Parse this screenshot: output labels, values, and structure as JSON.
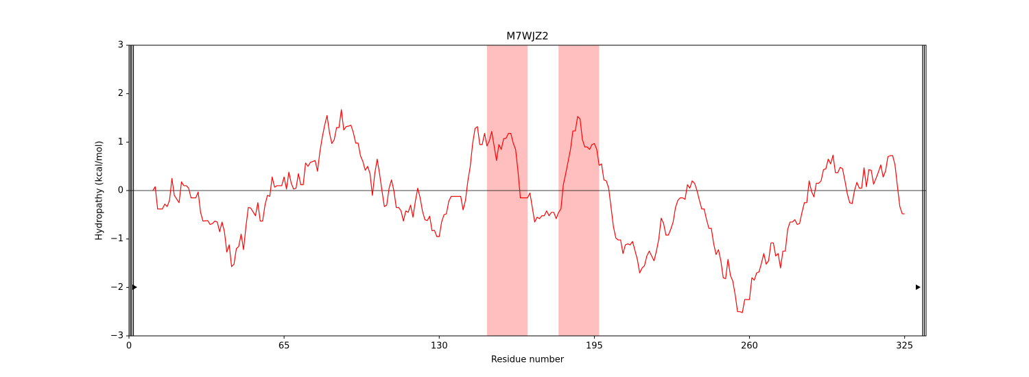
{
  "chart_data": {
    "type": "line",
    "title": "M7WJZ2",
    "x_label": "Residue number",
    "y_label": "Hydropathy (kcal/mol)",
    "color": "#ff0000",
    "x": [
      10,
      11,
      12,
      14,
      15,
      16,
      17,
      18,
      19,
      21,
      22,
      23,
      24,
      25,
      26,
      28,
      29,
      30,
      31,
      33,
      34,
      35,
      36,
      37,
      38,
      39,
      40,
      41,
      42,
      43,
      44,
      45,
      46,
      47,
      48,
      49,
      50,
      51,
      53,
      54,
      55,
      56,
      57,
      58,
      59,
      60,
      61,
      62,
      64,
      65,
      66,
      67,
      68,
      69,
      70,
      71,
      72,
      73,
      74,
      75,
      76,
      77,
      78,
      79,
      80,
      81,
      82,
      83,
      84,
      85,
      86,
      87,
      88,
      89,
      90,
      91,
      92,
      93,
      94,
      95,
      96,
      97,
      98,
      99,
      100,
      101,
      102,
      103,
      104,
      105,
      106,
      107,
      108,
      109,
      110,
      111,
      112,
      113,
      114,
      115,
      116,
      117,
      118,
      119,
      120,
      121,
      122,
      123,
      124,
      125,
      126,
      127,
      128,
      129,
      130,
      131,
      132,
      133,
      134,
      135,
      136,
      137,
      139,
      140,
      141,
      142,
      143,
      144,
      145,
      146,
      147,
      148,
      149,
      150,
      151,
      152,
      153,
      154,
      155,
      156,
      157,
      158,
      159,
      160,
      161,
      162,
      163,
      164,
      166,
      167,
      168,
      170,
      171,
      172,
      173,
      174,
      175,
      176,
      177,
      178,
      179,
      180,
      181,
      182,
      183,
      184,
      185,
      186,
      187,
      188,
      189,
      190,
      191,
      192,
      193,
      194,
      195,
      196,
      197,
      198,
      199,
      200,
      201,
      202,
      203,
      204,
      205,
      206,
      207,
      208,
      209,
      210,
      211,
      213,
      214,
      215,
      216,
      217,
      218,
      219,
      220,
      221,
      222,
      223,
      224,
      225,
      226,
      227,
      228,
      229,
      230,
      231,
      232,
      233,
      234,
      235,
      236,
      237,
      238,
      239,
      240,
      241,
      242,
      243,
      244,
      245,
      246,
      247,
      248,
      249,
      250,
      251,
      252,
      253,
      254,
      255,
      256,
      257,
      258,
      259,
      260,
      261,
      262,
      263,
      264,
      265,
      266,
      267,
      268,
      269,
      270,
      271,
      272,
      273,
      274,
      275,
      276,
      277,
      278,
      279,
      280,
      281,
      282,
      283,
      284,
      285,
      286,
      287,
      288,
      289,
      290,
      291,
      292,
      293,
      294,
      295,
      296,
      297,
      298,
      299,
      300,
      301,
      302,
      303,
      304,
      305,
      306,
      307,
      308,
      309,
      310,
      311,
      312,
      313,
      314,
      315,
      316,
      317,
      318,
      319,
      320,
      321,
      322,
      323,
      324,
      325
    ],
    "values": [
      0.0,
      0.08,
      -0.38,
      -0.38,
      -0.28,
      -0.33,
      -0.2,
      0.25,
      -0.1,
      -0.25,
      0.18,
      0.1,
      0.1,
      0.05,
      -0.15,
      -0.15,
      -0.03,
      -0.45,
      -0.63,
      -0.62,
      -0.7,
      -0.68,
      -0.63,
      -0.65,
      -0.85,
      -0.65,
      -0.85,
      -1.27,
      -1.12,
      -1.57,
      -1.52,
      -1.2,
      -1.15,
      -0.9,
      -1.22,
      -0.75,
      -0.35,
      -0.36,
      -0.52,
      -0.25,
      -0.63,
      -0.63,
      -0.3,
      -0.1,
      -0.12,
      0.28,
      0.07,
      0.1,
      0.1,
      0.28,
      0.03,
      0.38,
      0.15,
      0.03,
      0.05,
      0.35,
      0.12,
      0.12,
      0.57,
      0.5,
      0.58,
      0.6,
      0.62,
      0.4,
      0.8,
      1.1,
      1.35,
      1.55,
      1.2,
      0.97,
      1.05,
      1.3,
      1.3,
      1.67,
      1.25,
      1.32,
      1.33,
      1.35,
      1.2,
      0.98,
      0.98,
      0.72,
      0.6,
      0.42,
      0.5,
      0.35,
      -0.1,
      0.35,
      0.65,
      0.35,
      0.0,
      -0.33,
      -0.3,
      0.05,
      0.22,
      0.0,
      -0.35,
      -0.35,
      -0.42,
      -0.63,
      -0.42,
      -0.45,
      -0.3,
      -0.55,
      -0.22,
      0.05,
      -0.15,
      -0.43,
      -0.6,
      -0.62,
      -0.53,
      -0.83,
      -0.82,
      -0.95,
      -0.95,
      -0.65,
      -0.5,
      -0.48,
      -0.22,
      -0.12,
      -0.12,
      -0.12,
      -0.12,
      -0.4,
      -0.2,
      0.2,
      0.5,
      0.97,
      1.28,
      1.32,
      0.95,
      0.95,
      1.18,
      0.92,
      1.03,
      1.22,
      0.92,
      0.62,
      0.95,
      0.85,
      1.07,
      1.08,
      1.18,
      1.18,
      0.98,
      0.85,
      0.4,
      -0.15,
      -0.15,
      -0.15,
      -0.05,
      -0.65,
      -0.55,
      -0.58,
      -0.52,
      -0.52,
      -0.42,
      -0.52,
      -0.45,
      -0.45,
      -0.58,
      -0.45,
      -0.38,
      0.12,
      0.35,
      0.6,
      0.85,
      1.23,
      1.23,
      1.53,
      1.48,
      1.05,
      0.9,
      0.9,
      0.85,
      0.95,
      0.97,
      0.85,
      0.52,
      0.55,
      0.22,
      0.2,
      0.05,
      -0.35,
      -0.75,
      -0.98,
      -1.02,
      -1.02,
      -1.3,
      -1.12,
      -1.1,
      -1.12,
      -1.05,
      -1.42,
      -1.7,
      -1.6,
      -1.55,
      -1.35,
      -1.25,
      -1.35,
      -1.45,
      -1.25,
      -1.0,
      -0.57,
      -0.68,
      -0.92,
      -0.92,
      -0.8,
      -0.65,
      -0.35,
      -0.2,
      -0.15,
      -0.15,
      -0.18,
      0.12,
      0.05,
      0.2,
      0.15,
      0.0,
      -0.2,
      -0.38,
      -0.38,
      -0.6,
      -0.78,
      -0.78,
      -1.1,
      -1.32,
      -1.22,
      -1.45,
      -1.8,
      -1.82,
      -1.42,
      -1.75,
      -1.87,
      -2.15,
      -2.5,
      -2.5,
      -2.52,
      -2.25,
      -2.25,
      -2.25,
      -1.8,
      -1.85,
      -1.7,
      -1.68,
      -1.5,
      -1.3,
      -1.52,
      -1.45,
      -1.08,
      -1.08,
      -1.35,
      -1.3,
      -1.6,
      -1.25,
      -1.25,
      -0.8,
      -0.65,
      -0.65,
      -0.6,
      -0.7,
      -0.68,
      -0.45,
      -0.25,
      -0.25,
      0.2,
      -0.02,
      -0.13,
      0.15,
      0.15,
      0.2,
      0.43,
      0.45,
      0.65,
      0.55,
      0.73,
      0.37,
      0.37,
      0.48,
      0.45,
      0.2,
      -0.07,
      -0.25,
      -0.27,
      0.0,
      0.17,
      0.05,
      0.05,
      0.47,
      0.08,
      0.43,
      0.42,
      0.13,
      0.25,
      0.38,
      0.53,
      0.28,
      0.4,
      0.7,
      0.72,
      0.72,
      0.52,
      0.08,
      -0.33,
      -0.48,
      -0.48
    ],
    "spans": [
      [
        150,
        167
      ],
      [
        180,
        197
      ]
    ],
    "span_color": "#ffbfbf",
    "hline": 0,
    "xlim": [
      0,
      334
    ],
    "ylim": [
      -3,
      3
    ],
    "xticks": [
      0,
      65,
      130,
      195,
      260,
      325
    ],
    "yticks": [
      {
        "value": -3,
        "label": "−3"
      },
      {
        "value": -2,
        "label": "−2"
      },
      {
        "value": -1,
        "label": "−1"
      },
      0,
      1,
      2,
      3
    ],
    "grid": false
  }
}
